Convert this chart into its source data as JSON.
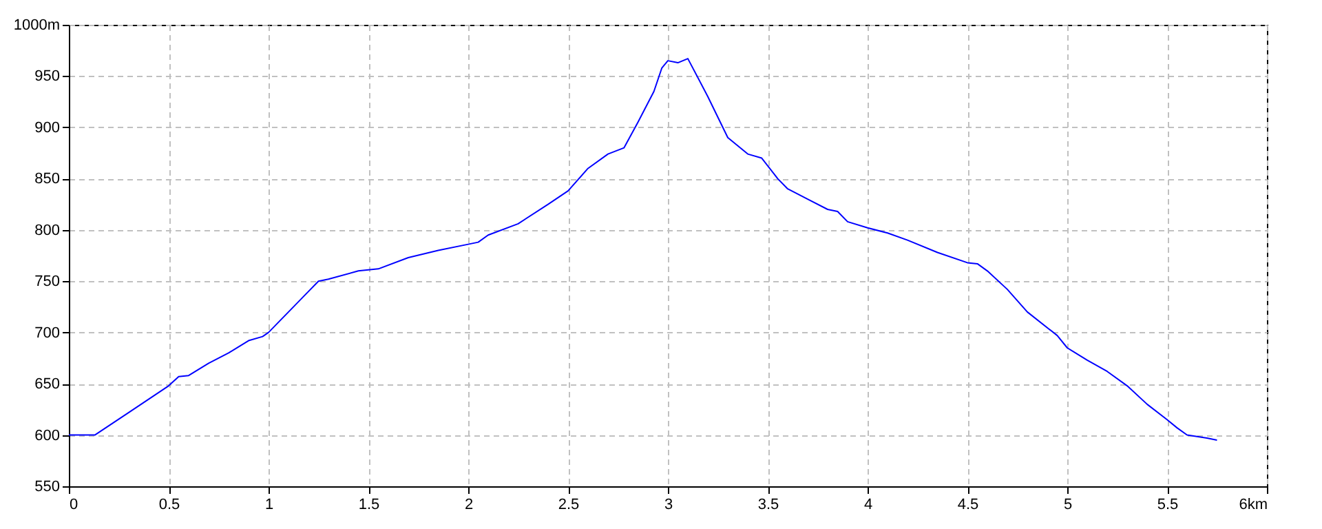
{
  "chart_data": {
    "type": "line",
    "x": [
      0,
      0.13,
      0.3,
      0.5,
      0.55,
      0.6,
      0.7,
      0.8,
      0.9,
      0.97,
      1.0,
      1.1,
      1.2,
      1.25,
      1.3,
      1.45,
      1.55,
      1.7,
      1.85,
      2.0,
      2.05,
      2.1,
      2.25,
      2.4,
      2.5,
      2.6,
      2.7,
      2.78,
      2.85,
      2.93,
      2.97,
      3.0,
      3.05,
      3.1,
      3.2,
      3.3,
      3.4,
      3.47,
      3.55,
      3.6,
      3.7,
      3.8,
      3.85,
      3.9,
      4.0,
      4.1,
      4.2,
      4.35,
      4.5,
      4.55,
      4.6,
      4.7,
      4.8,
      4.95,
      5.0,
      5.1,
      5.2,
      5.3,
      5.4,
      5.5,
      5.55,
      5.6,
      5.7,
      5.75
    ],
    "series": [
      {
        "color": "#0000ff",
        "values": [
          600,
          600,
          622,
          648,
          657,
          658,
          670,
          680,
          692,
          696,
          700,
          720,
          740,
          750,
          752,
          760,
          762,
          773,
          780,
          786,
          788,
          795,
          806,
          825,
          838,
          860,
          874,
          880,
          905,
          935,
          958,
          965,
          963,
          967,
          930,
          890,
          874,
          870,
          850,
          840,
          830,
          820,
          818,
          808,
          802,
          797,
          790,
          778,
          768,
          767,
          760,
          742,
          720,
          697,
          685,
          673,
          662,
          648,
          630,
          615,
          607,
          600,
          597,
          595
        ]
      }
    ],
    "xlim": [
      0,
      6
    ],
    "xticks": [
      0,
      0.5,
      1,
      1.5,
      2,
      2.5,
      3,
      3.5,
      4,
      4.5,
      5,
      5.5,
      {
        "value": 6,
        "label": "6km"
      }
    ],
    "ylim": [
      550,
      1000
    ],
    "yticks": [
      550,
      600,
      650,
      700,
      750,
      800,
      850,
      900,
      950,
      {
        "value": 1000,
        "label": "1000m"
      }
    ],
    "grid": true,
    "marker": "none",
    "line_style": "solid"
  }
}
